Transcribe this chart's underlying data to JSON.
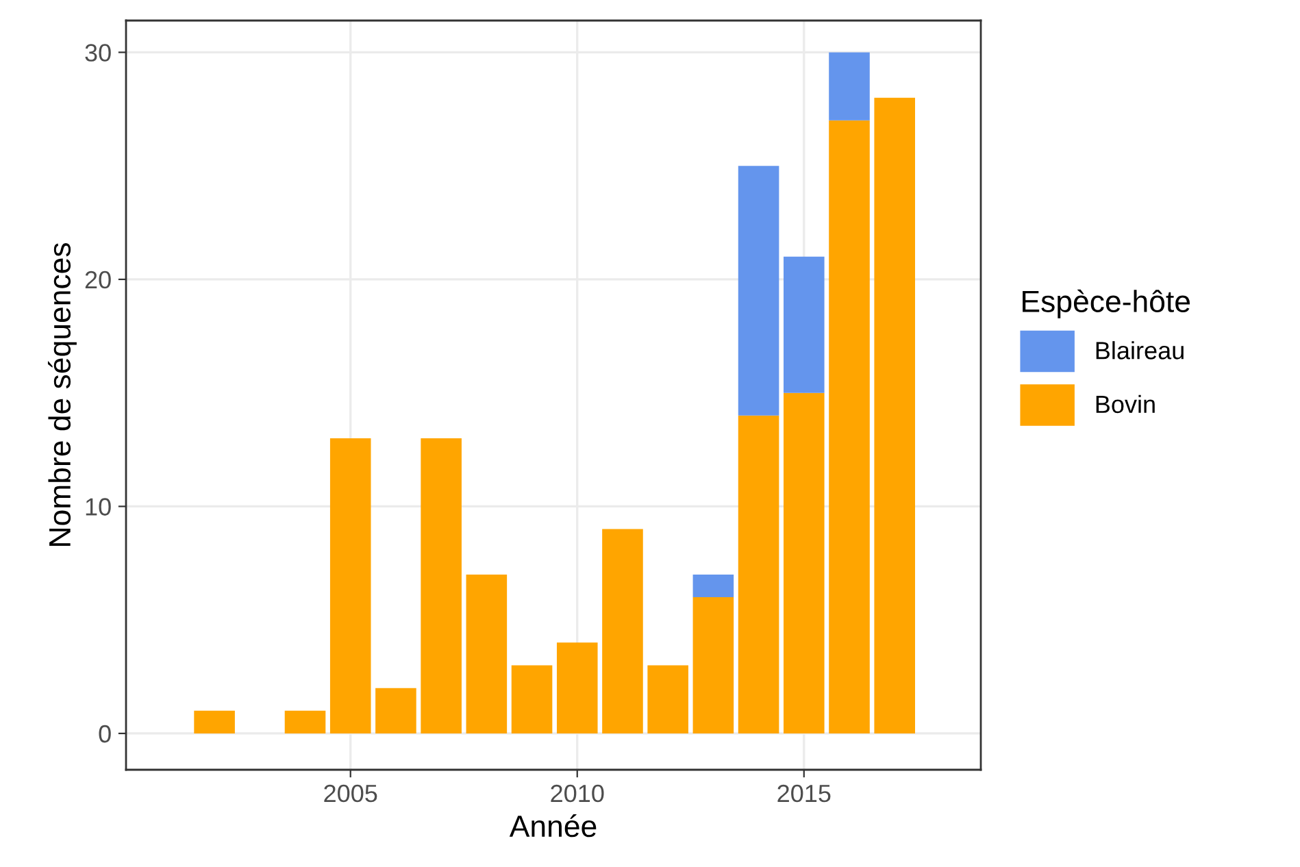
{
  "chart_data": {
    "type": "bar",
    "stacked": true,
    "xlabel": "Année",
    "ylabel": "Nombre de séquences",
    "legend_title": "Espèce-hôte",
    "legend": "right",
    "x": [
      2002,
      2004,
      2005,
      2006,
      2007,
      2008,
      2009,
      2010,
      2011,
      2012,
      2013,
      2014,
      2015,
      2016,
      2017
    ],
    "series": [
      {
        "name": "Bovin",
        "color": "#ffa500",
        "values": [
          1,
          1,
          13,
          2,
          13,
          7,
          3,
          4,
          9,
          3,
          6,
          14,
          15,
          27,
          28
        ]
      },
      {
        "name": "Blaireau",
        "color": "#6495ed",
        "values": [
          null,
          null,
          null,
          null,
          null,
          null,
          null,
          null,
          null,
          null,
          1,
          11,
          6,
          3,
          null
        ]
      }
    ],
    "xlim": [
      2000.05,
      2018.9
    ],
    "xticks": [
      2005,
      2010,
      2015
    ],
    "ylim": [
      -1.6,
      31.4
    ],
    "yticks": [
      0,
      10,
      20,
      30
    ],
    "grid": true
  }
}
